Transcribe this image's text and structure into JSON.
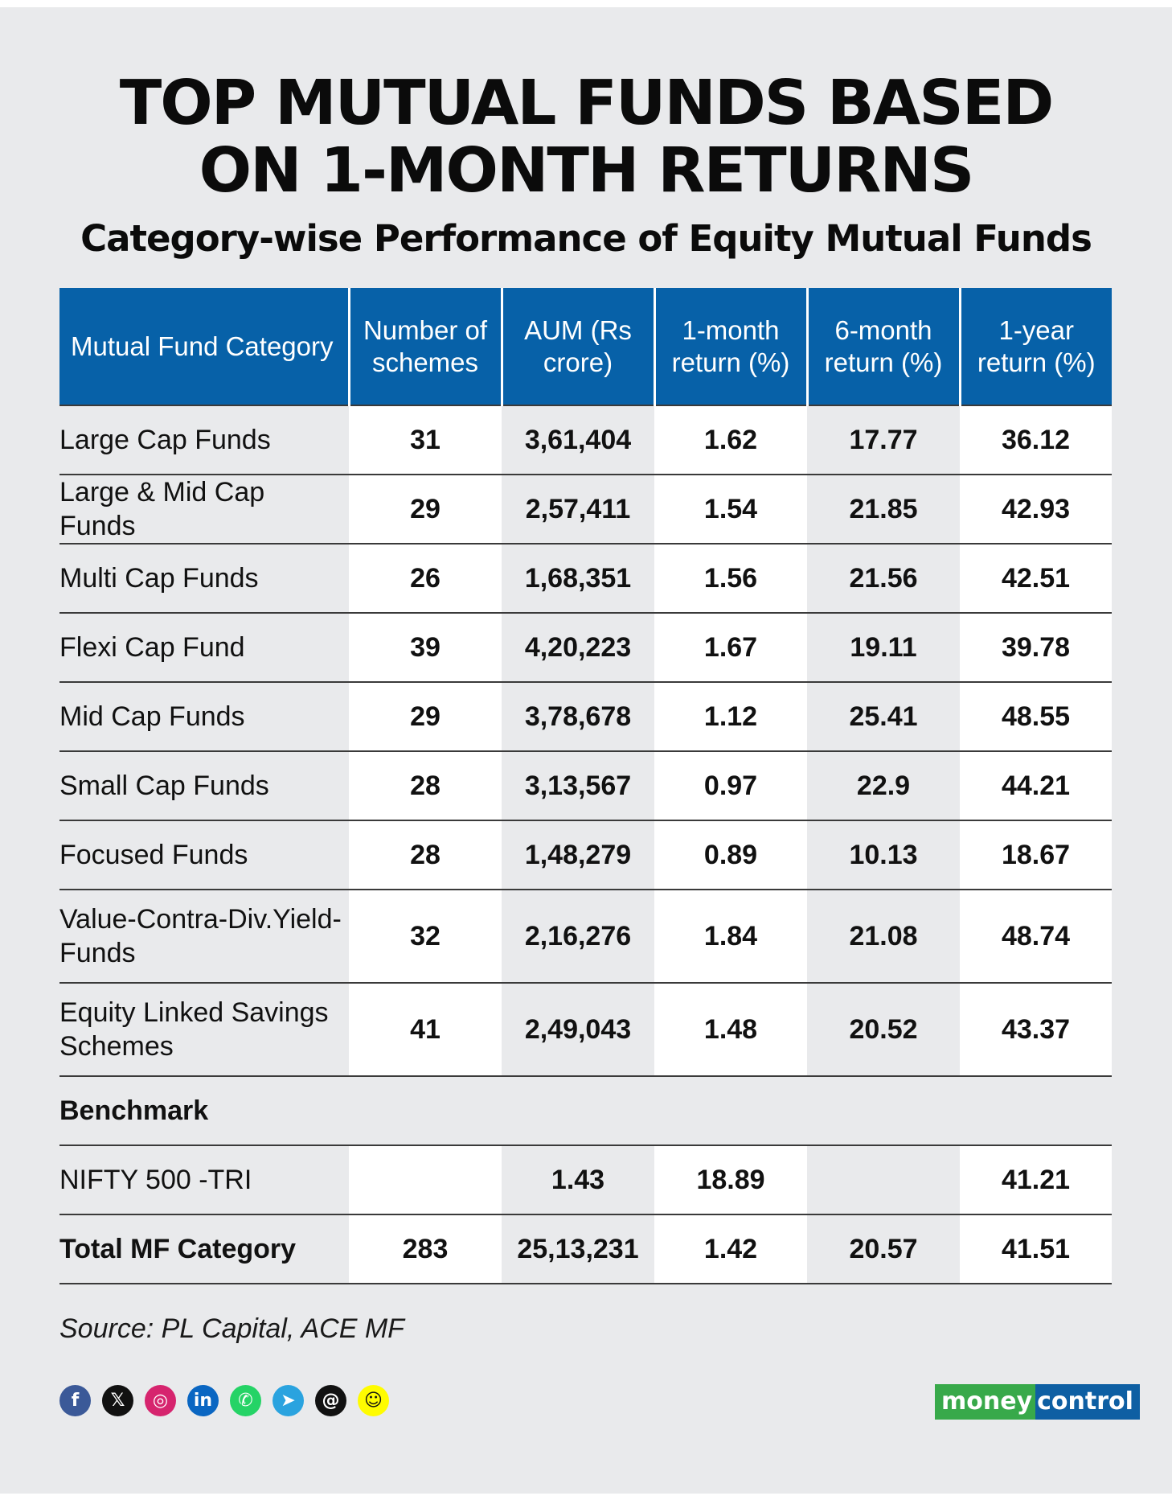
{
  "title": {
    "line1": "TOP MUTUAL FUNDS BASED",
    "line2": "ON 1-MONTH RETURNS"
  },
  "subtitle": "Category-wise Performance of Equity Mutual Funds",
  "table": {
    "headers": [
      "Mutual Fund Category",
      "Number of schemes",
      "AUM (Rs crore)",
      "1-month return (%)",
      "6-month return (%)",
      "1-year return (%)"
    ],
    "rows": [
      {
        "category": "Large Cap Funds",
        "schemes": "31",
        "aum": "3,61,404",
        "m1": "1.62",
        "m6": "17.77",
        "y1": "36.12"
      },
      {
        "category": "Large & Mid Cap Funds",
        "schemes": "29",
        "aum": "2,57,411",
        "m1": "1.54",
        "m6": "21.85",
        "y1": "42.93"
      },
      {
        "category": "Multi Cap Funds",
        "schemes": "26",
        "aum": "1,68,351",
        "m1": "1.56",
        "m6": "21.56",
        "y1": "42.51"
      },
      {
        "category": "Flexi Cap Fund",
        "schemes": "39",
        "aum": "4,20,223",
        "m1": "1.67",
        "m6": "19.11",
        "y1": "39.78"
      },
      {
        "category": "Mid Cap Funds",
        "schemes": "29",
        "aum": "3,78,678",
        "m1": "1.12",
        "m6": "25.41",
        "y1": "48.55"
      },
      {
        "category": "Small Cap Funds",
        "schemes": "28",
        "aum": "3,13,567",
        "m1": "0.97",
        "m6": "22.9",
        "y1": "44.21"
      },
      {
        "category": "Focused Funds",
        "schemes": "28",
        "aum": "1,48,279",
        "m1": "0.89",
        "m6": "10.13",
        "y1": "18.67"
      },
      {
        "category": "Value-Contra-Div.Yield-Funds",
        "schemes": "32",
        "aum": "2,16,276",
        "m1": "1.84",
        "m6": "21.08",
        "y1": "48.74"
      },
      {
        "category": "Equity Linked Savings Schemes",
        "schemes": "41",
        "aum": "2,49,043",
        "m1": "1.48",
        "m6": "20.52",
        "y1": "43.37"
      }
    ],
    "benchmark_label": "Benchmark",
    "benchmark": {
      "category": "NIFTY 500 -TRI",
      "schemes": "",
      "aum": "1.43",
      "m1": "18.89",
      "m6": "",
      "y1": "41.21"
    },
    "total": {
      "category": "Total MF Category",
      "schemes": "283",
      "aum": "25,13,231",
      "m1": "1.42",
      "m6": "20.57",
      "y1": "41.51"
    }
  },
  "source": "Source: PL Capital, ACE MF",
  "socials": [
    {
      "icon": "facebook-icon",
      "glyph": "f",
      "color": "#3b5998"
    },
    {
      "icon": "x-icon",
      "glyph": "𝕏",
      "color": "#111111"
    },
    {
      "icon": "instagram-icon",
      "glyph": "◎",
      "color": "#d6246e"
    },
    {
      "icon": "linkedin-icon",
      "glyph": "in",
      "color": "#0a66c2"
    },
    {
      "icon": "whatsapp-icon",
      "glyph": "✆",
      "color": "#25d366"
    },
    {
      "icon": "telegram-icon",
      "glyph": "➤",
      "color": "#2aa3df"
    },
    {
      "icon": "threads-icon",
      "glyph": "@",
      "color": "#111111"
    },
    {
      "icon": "snapchat-icon",
      "glyph": "☺",
      "color": "#fffc00"
    }
  ],
  "logo": {
    "part1": "money",
    "part2": "control"
  }
}
